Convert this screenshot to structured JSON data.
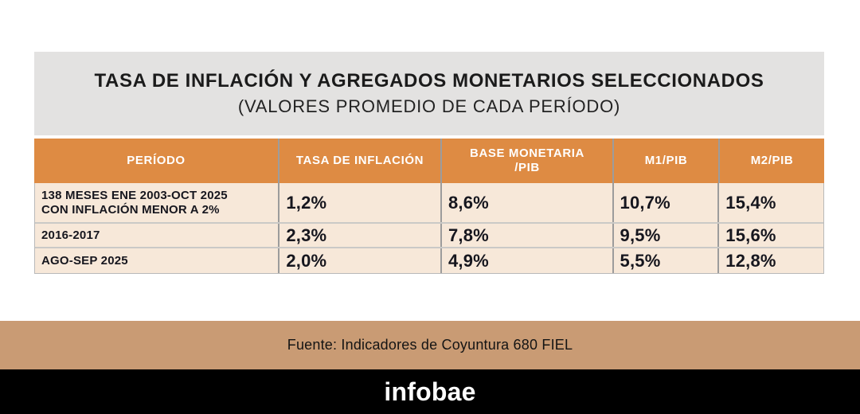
{
  "header": {
    "title": "TASA DE INFLACIÓN Y AGREGADOS MONETARIOS SELECCIONADOS",
    "subtitle": "(VALORES PROMEDIO DE CADA PERÍODO)"
  },
  "table": {
    "columns": [
      {
        "label": "PERÍODO"
      },
      {
        "label": "TASA DE INFLACIÓN"
      },
      {
        "label": "BASE MONETARIA",
        "label2": "/PIB"
      },
      {
        "label": "M1/PIB"
      },
      {
        "label": "M2/PIB"
      }
    ],
    "rows": [
      {
        "period_line1": "138 MESES ENE 2003-OCT 2025",
        "period_line2": "CON INFLACIÓN MENOR A 2%",
        "tasa_inflacion": "1,2%",
        "base_monetaria_pib": "8,6%",
        "m1_pib": "10,7%",
        "m2_pib": "15,4%"
      },
      {
        "period_line1": "2016-2017",
        "tasa_inflacion": "2,3%",
        "base_monetaria_pib": "7,8%",
        "m1_pib": "9,5%",
        "m2_pib": "15,6%"
      },
      {
        "period_line1": "AGO-SEP 2025",
        "tasa_inflacion": "2,0%",
        "base_monetaria_pib": "4,9%",
        "m1_pib": "5,5%",
        "m2_pib": "12,8%"
      }
    ]
  },
  "footer": {
    "source": "Fuente: Indicadores de Coyuntura 680 FIEL"
  },
  "brand": {
    "logo_text": "infobae"
  },
  "colors": {
    "header_orange": "#de8b43",
    "row_cream": "#f7e8d9",
    "title_gray": "#e3e2e1",
    "source_tan": "#c99b74",
    "brand_black": "#000000",
    "divider_gray": "#9c9c9c"
  },
  "chart_data": {
    "type": "table",
    "title": "TASA DE INFLACIÓN Y AGREGADOS MONETARIOS SELECCIONADOS",
    "subtitle": "(VALORES PROMEDIO DE CADA PERÍODO)",
    "columns": [
      "PERÍODO",
      "TASA DE INFLACIÓN",
      "BASE MONETARIA /PIB",
      "M1/PIB",
      "M2/PIB"
    ],
    "rows": [
      [
        "138 MESES ENE 2003-OCT 2025 CON INFLACIÓN MENOR A 2%",
        "1,2%",
        "8,6%",
        "10,7%",
        "15,4%"
      ],
      [
        "2016-2017",
        "2,3%",
        "7,8%",
        "9,5%",
        "15,6%"
      ],
      [
        "AGO-SEP 2025",
        "2,0%",
        "4,9%",
        "5,5%",
        "12,8%"
      ]
    ],
    "values_numeric_percent": {
      "tasa_inflacion": [
        1.2,
        2.3,
        2.0
      ],
      "base_monetaria_pib": [
        8.6,
        7.8,
        4.9
      ],
      "m1_pib": [
        10.7,
        9.5,
        5.5
      ],
      "m2_pib": [
        15.4,
        15.6,
        12.8
      ]
    },
    "source": "Fuente: Indicadores de Coyuntura 680 FIEL"
  }
}
